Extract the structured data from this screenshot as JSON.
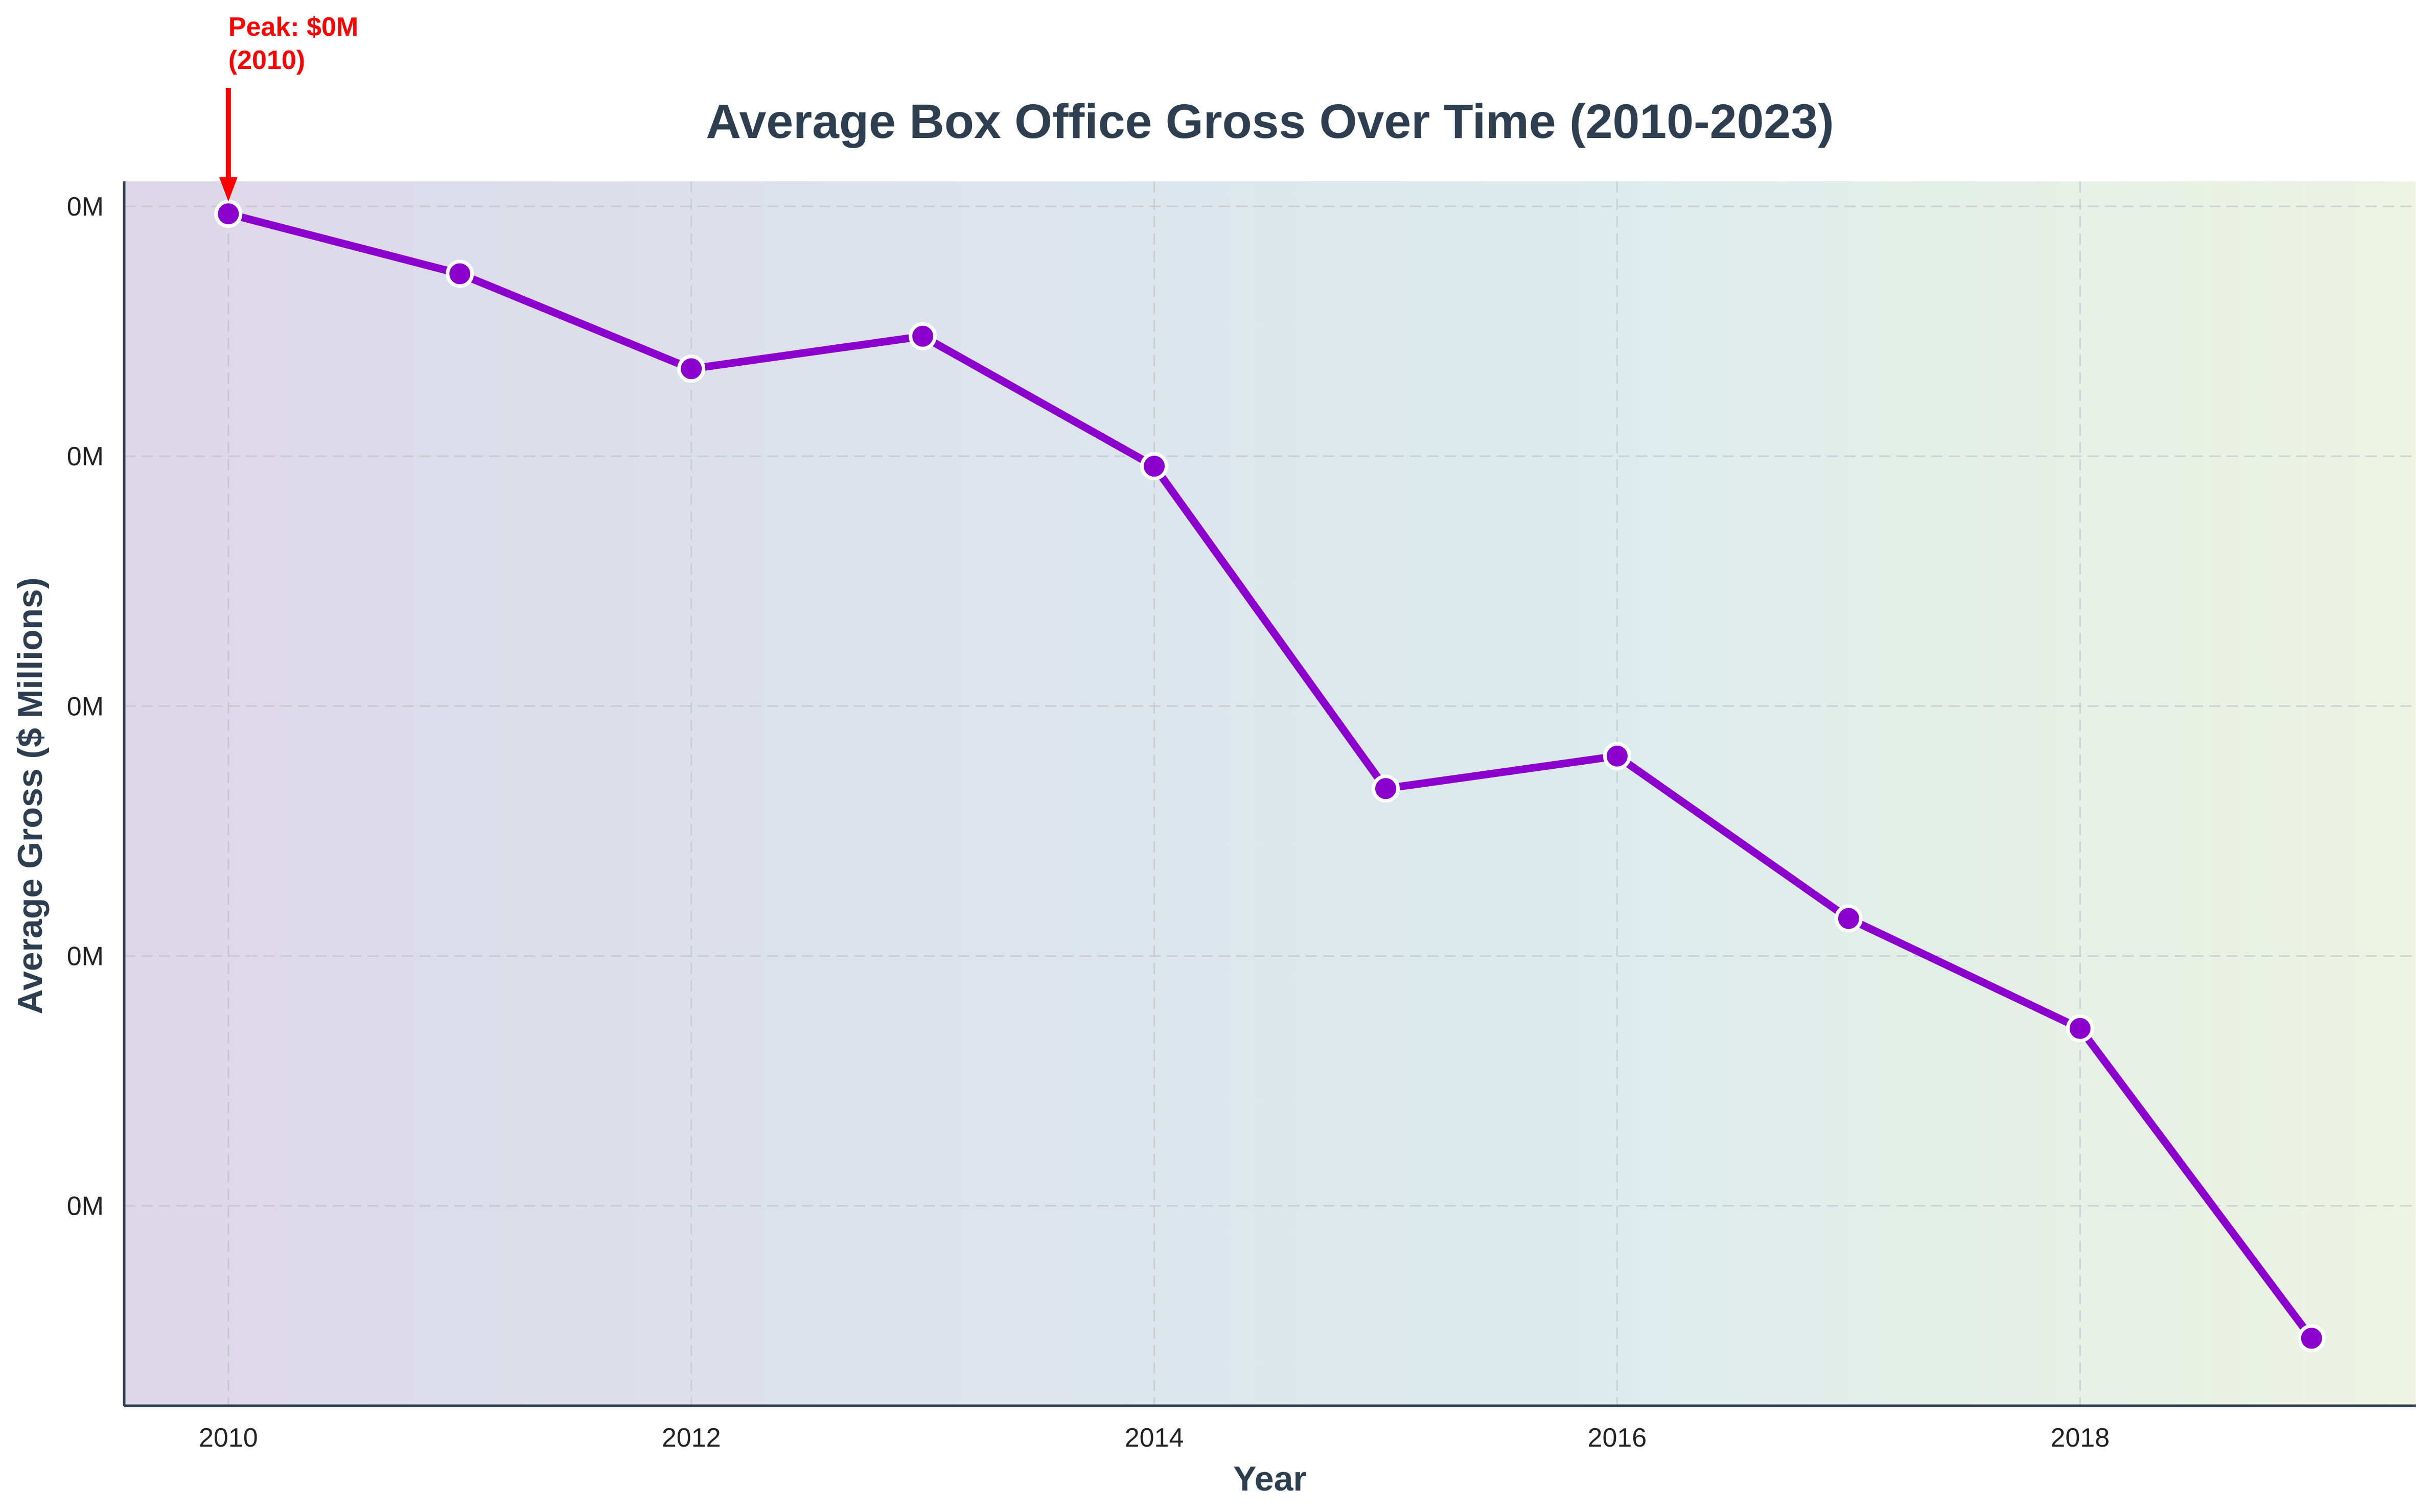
{
  "chart_data": {
    "type": "line",
    "title": "Average Box Office Gross Over Time (2010-2023)",
    "xlabel": "Year",
    "ylabel": "Average Gross ($ Millions)",
    "x": [
      2010,
      2011,
      2012,
      2013,
      2014,
      2015,
      2016,
      2017,
      2018,
      2019
    ],
    "series": [
      {
        "values": [
          0.497,
          0.473,
          0.435,
          0.448,
          0.396,
          0.267,
          0.28,
          0.215,
          0.171,
          0.047
        ]
      }
    ],
    "xlim": [
      2009.55,
      2019.45
    ],
    "ylim": [
      0.02,
      0.51
    ],
    "x_ticks": [
      2010,
      2012,
      2014,
      2016,
      2018
    ],
    "x_tick_labels": [
      "2010",
      "2012",
      "2014",
      "2016",
      "2018"
    ],
    "y_ticks": [
      0.1,
      0.2,
      0.3,
      0.4,
      0.5
    ],
    "y_tick_labels": [
      "0M",
      "0M",
      "0M",
      "0M",
      "0M"
    ],
    "grid": true,
    "line_color": "#8b00cc",
    "marker_edge_color": "#ffffff",
    "annotation": {
      "text_line1": "Peak: $0M",
      "text_line2": "(2010)",
      "x": 2010,
      "y": 0.497,
      "color": "#ff0000"
    },
    "background_gradient": [
      "#ddd7e8",
      "#dde3ec",
      "#dcebec",
      "#eef3e2"
    ],
    "axis_color": "#2c3e50"
  }
}
